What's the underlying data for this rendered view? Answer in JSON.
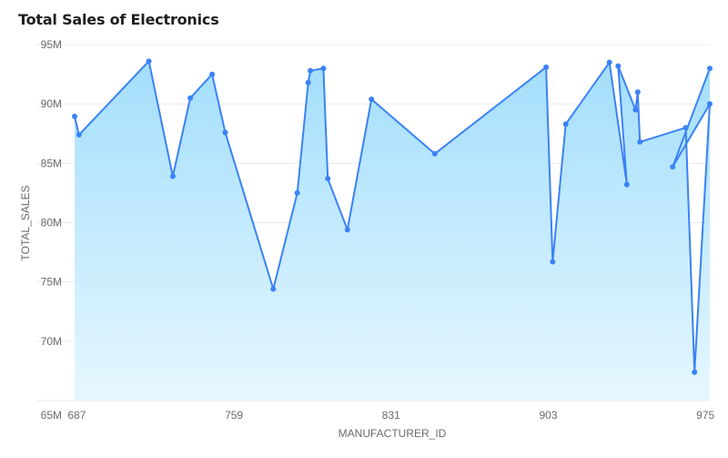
{
  "chart_data": {
    "type": "area",
    "title": "Total Sales of Electronics",
    "xlabel": "MANUFACTURER_ID",
    "ylabel": "TOTAL_SALES",
    "xlim": [
      686,
      977
    ],
    "ylim": [
      65000000,
      95000000
    ],
    "x_ticks": [
      687,
      759,
      831,
      903,
      975
    ],
    "y_ticks": [
      {
        "value": 65000000,
        "label": "65M"
      },
      {
        "value": 70000000,
        "label": "70M"
      },
      {
        "value": 75000000,
        "label": "75M"
      },
      {
        "value": 80000000,
        "label": "80M"
      },
      {
        "value": 85000000,
        "label": "85M"
      },
      {
        "value": 90000000,
        "label": "90M"
      },
      {
        "value": 95000000,
        "label": "95M"
      }
    ],
    "grid": true,
    "colors": {
      "line": "#3b82f6",
      "point": "#3b82f6",
      "fill_top": "#a3defc",
      "fill_bottom": "#e6f7ff",
      "grid": "#ebebeb"
    },
    "x": [
      686,
      688,
      720,
      731,
      739,
      749,
      755,
      777,
      788,
      793,
      794,
      800,
      802,
      811,
      822,
      851,
      902,
      905,
      911,
      931,
      939,
      935,
      943,
      944,
      945,
      966,
      970,
      977,
      960,
      977
    ],
    "y": [
      88950000,
      87400000,
      93600000,
      83900000,
      90500000,
      92500000,
      87600000,
      74400000,
      82500000,
      91800000,
      92800000,
      93000000,
      83700000,
      79400000,
      90400000,
      85800000,
      93100000,
      76700000,
      88300000,
      93500000,
      83200000,
      93200000,
      89500000,
      91000000,
      86800000,
      88000000,
      67400000,
      90000000,
      84700000,
      93000000
    ]
  }
}
